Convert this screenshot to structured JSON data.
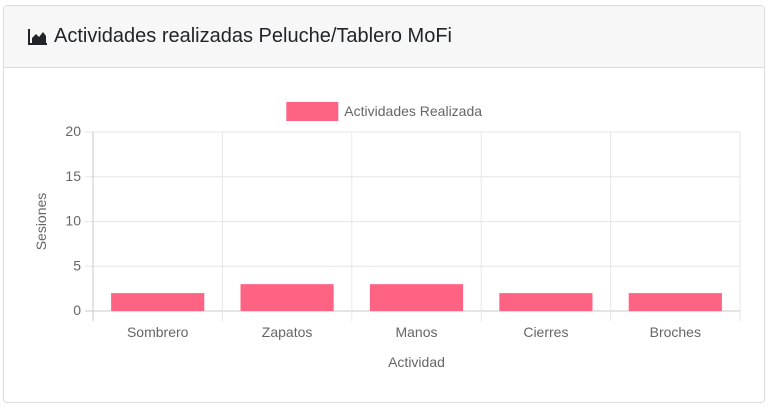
{
  "header": {
    "title": "Actividades realizadas Peluche/Tablero MoFi",
    "icon": "area-chart-icon"
  },
  "chart_data": {
    "type": "bar",
    "title": "",
    "categories": [
      "Sombrero",
      "Zapatos",
      "Manos",
      "Cierres",
      "Broches"
    ],
    "series": [
      {
        "name": "Actividades Realizada",
        "values": [
          2,
          3,
          3,
          2,
          2
        ],
        "color": "#ff6384"
      }
    ],
    "xlabel": "Actividad",
    "ylabel": "Sesiones",
    "ylim": [
      0,
      20
    ],
    "yticks": [
      "0",
      "5",
      "10",
      "15",
      "20"
    ],
    "grid": true,
    "legend": "top-center"
  }
}
